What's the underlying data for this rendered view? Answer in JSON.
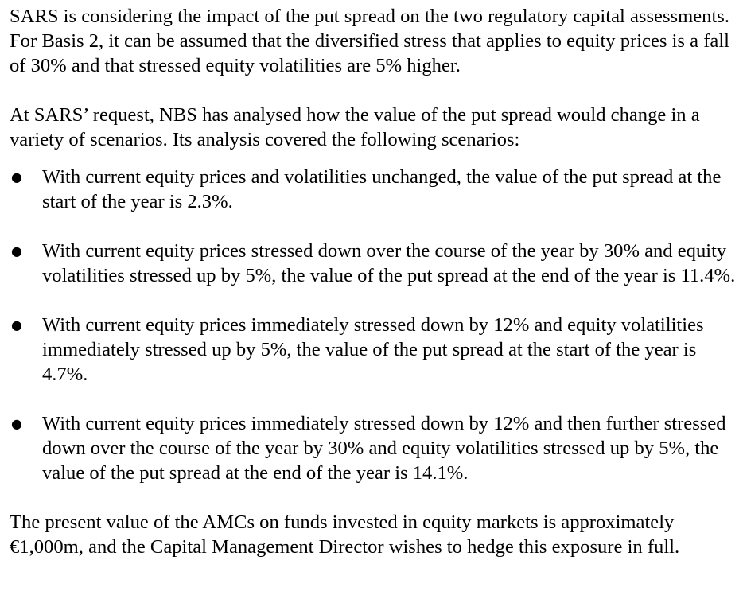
{
  "document": {
    "intro_paragraph": "SARS is considering the impact of the put spread on the two regulatory capital assessments.  For Basis 2, it can be assumed that the diversified stress that applies to equity prices is a fall of 30% and that stressed equity volatilities are 5% higher.",
    "analysis_paragraph": "At SARS’ request, NBS has analysed how the value of the put spread would change in a variety of scenarios.  Its analysis covered the following scenarios:",
    "bullet_symbol": "●",
    "scenarios": [
      "With current equity prices and volatilities unchanged, the value of the put spread at the start of the year is 2.3%.",
      "With current equity prices stressed down over the course of the year by 30% and equity volatilities stressed up by 5%, the value of the put spread at the end of the year is 11.4%.",
      "With current equity prices immediately stressed down by 12% and equity volatilities immediately stressed up by 5%, the value of the put spread at the start of the year is 4.7%.",
      "With current equity prices immediately stressed down by 12% and then further stressed down over the course of the year by 30% and equity volatilities stressed up by 5%, the value of the put spread at the end of the year is 14.1%."
    ],
    "closing_paragraph": "The present value of the AMCs on funds invested in equity markets is approximately €1,000m, and the Capital Management Director wishes to hedge this exposure in full."
  }
}
